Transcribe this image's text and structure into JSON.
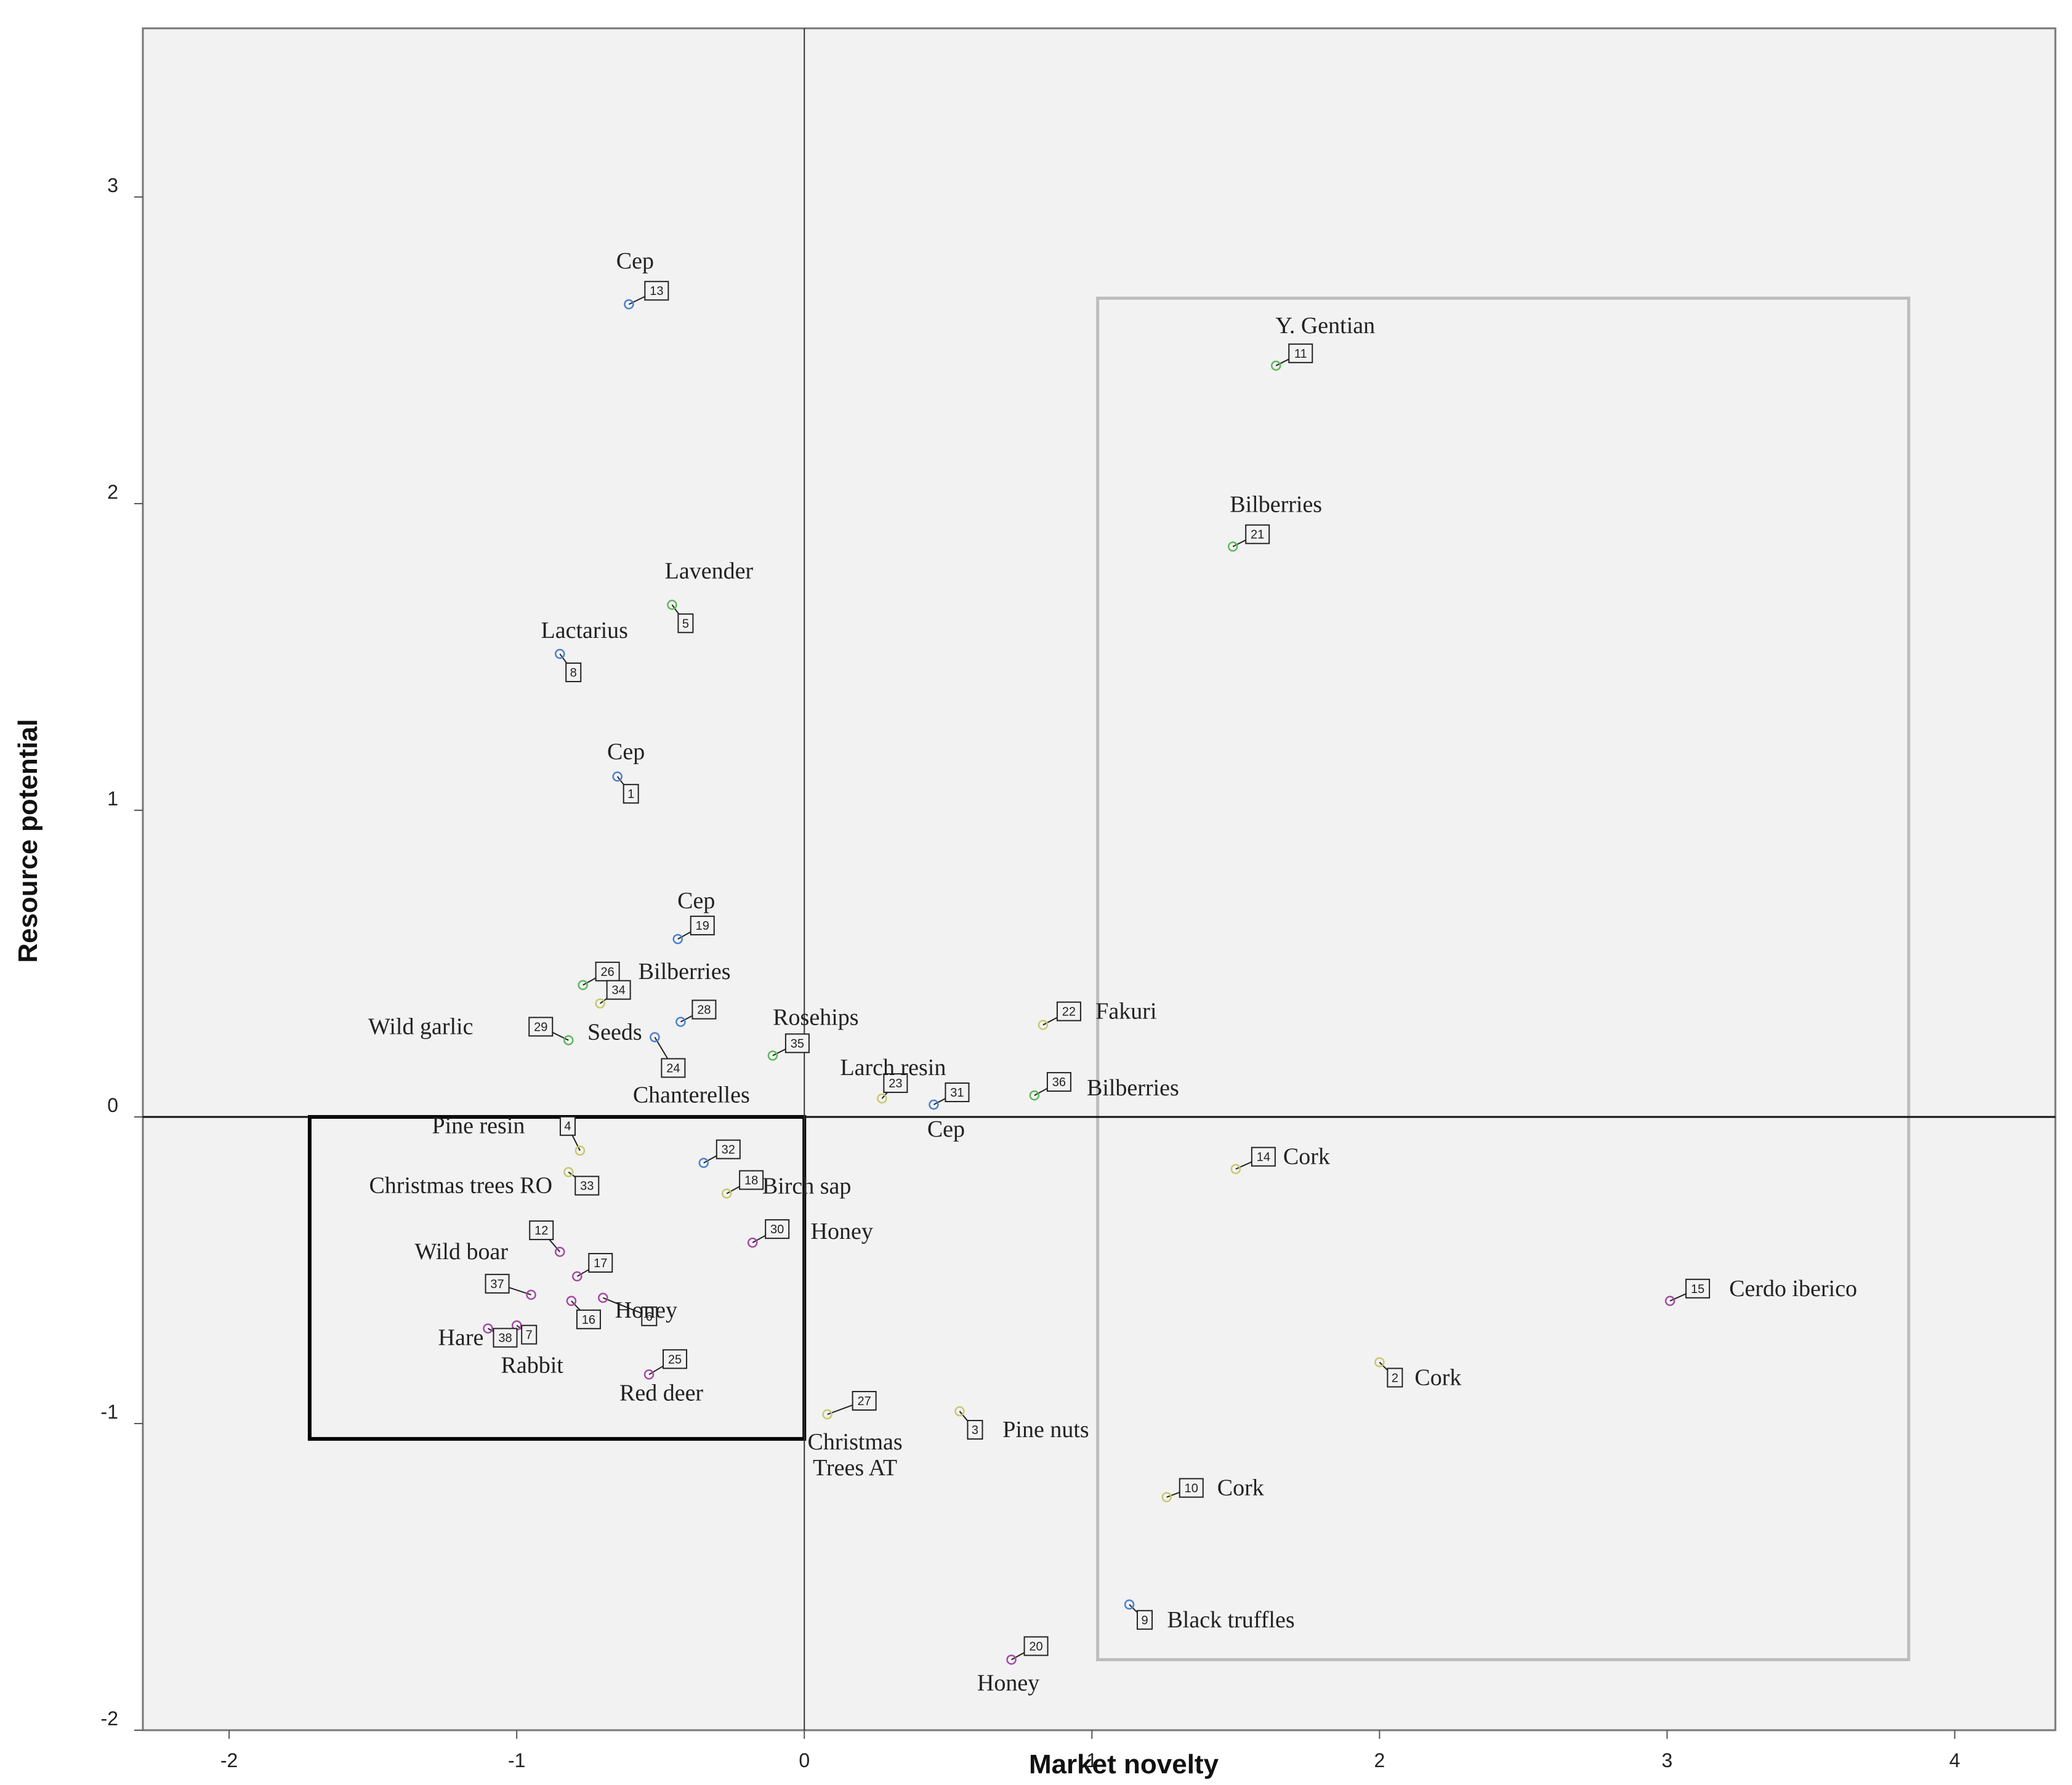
{
  "chart_data": {
    "type": "scatter",
    "xlabel": "Market novelty",
    "ylabel": "Resource potential",
    "xlim": [
      -2.3,
      4.35
    ],
    "ylim": [
      -2.0,
      3.55
    ],
    "x_ticks": [
      -2,
      -1,
      0,
      1,
      2,
      3,
      4
    ],
    "y_ticks": [
      -2,
      -1,
      0,
      1,
      2,
      3
    ],
    "x_tick_labels": [
      "-2",
      "-1",
      "0",
      "1",
      "2",
      "3",
      "4"
    ],
    "y_tick_labels": [
      "-2",
      "-1",
      "0",
      "1",
      "2",
      "3"
    ],
    "grid": false,
    "legend": "none",
    "colors": {
      "plot_background": "#f2f2f2",
      "mushroom": "#4a7fd0",
      "plant": "#5cb85c",
      "animal": "#a349a4",
      "other": "#c8c86e",
      "black_box": "#000000",
      "grey_box": "#bdbdbd"
    },
    "regions": [
      {
        "style": "black_box",
        "x": [
          -1.72,
          0.0
        ],
        "y": [
          -1.05,
          0.0
        ]
      },
      {
        "style": "grey_box",
        "x": [
          1.02,
          3.84
        ],
        "y": [
          -1.77,
          2.67
        ]
      }
    ],
    "points": [
      {
        "id": "13",
        "label": "Cep",
        "x": -0.61,
        "y": 2.65,
        "group": "mushroom"
      },
      {
        "id": "11",
        "label": "Y. Gentian",
        "x": 1.64,
        "y": 2.45,
        "group": "plant"
      },
      {
        "id": "21",
        "label": "Bilberries",
        "x": 1.49,
        "y": 1.86,
        "group": "plant"
      },
      {
        "id": "5",
        "label": "Lavender",
        "x": -0.46,
        "y": 1.67,
        "group": "plant"
      },
      {
        "id": "8",
        "label": "Lactarius",
        "x": -0.85,
        "y": 1.51,
        "group": "mushroom"
      },
      {
        "id": "1",
        "label": "Cep",
        "x": -0.65,
        "y": 1.11,
        "group": "mushroom"
      },
      {
        "id": "19",
        "label": "Cep",
        "x": -0.44,
        "y": 0.58,
        "group": "mushroom"
      },
      {
        "id": "26",
        "label": "Bilberries",
        "x": -0.77,
        "y": 0.43,
        "group": "plant"
      },
      {
        "id": "34",
        "label": "",
        "x": -0.71,
        "y": 0.37,
        "group": "other"
      },
      {
        "id": "28",
        "label": "",
        "x": -0.43,
        "y": 0.31,
        "group": "mushroom"
      },
      {
        "id": "29",
        "label": "Wild garlic",
        "x": -0.82,
        "y": 0.25,
        "group": "plant"
      },
      {
        "id": "24",
        "label": "Seeds",
        "x": -0.52,
        "y": 0.26,
        "group": "mushroom"
      },
      {
        "id": "35",
        "label": "Rosehips",
        "x": -0.11,
        "y": 0.2,
        "group": "plant"
      },
      {
        "id": "22",
        "label": "Fakuri",
        "x": 0.83,
        "y": 0.3,
        "group": "other"
      },
      {
        "id": "23",
        "label": "Larch resin",
        "x": 0.27,
        "y": 0.06,
        "group": "other"
      },
      {
        "id": "31",
        "label": "Cep",
        "x": 0.45,
        "y": 0.04,
        "group": "mushroom"
      },
      {
        "id": "36",
        "label": "Bilberries",
        "x": 0.8,
        "y": 0.07,
        "group": "plant"
      },
      {
        "id": "4",
        "label": "Pine resin",
        "x": -0.78,
        "y": -0.11,
        "group": "other"
      },
      {
        "id": "32",
        "label": "Chanterelles",
        "x": -0.35,
        "y": -0.15,
        "group": "mushroom"
      },
      {
        "id": "33",
        "label": "Christmas trees RO",
        "x": -0.82,
        "y": -0.18,
        "group": "other"
      },
      {
        "id": "18",
        "label": "Birch sap",
        "x": -0.27,
        "y": -0.25,
        "group": "other"
      },
      {
        "id": "14",
        "label": "Cork",
        "x": 1.5,
        "y": -0.17,
        "group": "other"
      },
      {
        "id": "30",
        "label": "Honey",
        "x": -0.18,
        "y": -0.41,
        "group": "animal"
      },
      {
        "id": "12",
        "label": "Wild boar",
        "x": -0.85,
        "y": -0.44,
        "group": "animal"
      },
      {
        "id": "17",
        "label": "",
        "x": -0.79,
        "y": -0.52,
        "group": "animal"
      },
      {
        "id": "37",
        "label": "",
        "x": -0.95,
        "y": -0.58,
        "group": "animal"
      },
      {
        "id": "6",
        "label": "Honey",
        "x": -0.7,
        "y": -0.59,
        "group": "animal"
      },
      {
        "id": "16",
        "label": "",
        "x": -0.81,
        "y": -0.6,
        "group": "animal"
      },
      {
        "id": "38",
        "label": "Hare",
        "x": -1.1,
        "y": -0.69,
        "group": "animal"
      },
      {
        "id": "7",
        "label": "Rabbit",
        "x": -1.0,
        "y": -0.68,
        "group": "animal"
      },
      {
        "id": "25",
        "label": "Red deer",
        "x": -0.54,
        "y": -0.84,
        "group": "animal"
      },
      {
        "id": "27",
        "label": "Christmas Trees AT",
        "x": 0.08,
        "y": -0.97,
        "group": "other"
      },
      {
        "id": "3",
        "label": "Pine nuts",
        "x": 0.54,
        "y": -0.96,
        "group": "other"
      },
      {
        "id": "15",
        "label": "Cerdo iberico",
        "x": 3.01,
        "y": -0.6,
        "group": "animal"
      },
      {
        "id": "2",
        "label": "Cork",
        "x": 2.0,
        "y": -0.8,
        "group": "other"
      },
      {
        "id": "10",
        "label": "Cork",
        "x": 1.26,
        "y": -1.24,
        "group": "other"
      },
      {
        "id": "9",
        "label": "Black truffles",
        "x": 1.13,
        "y": -1.59,
        "group": "mushroom"
      },
      {
        "id": "20",
        "label": "Honey",
        "x": 0.72,
        "y": -1.77,
        "group": "animal"
      }
    ]
  }
}
